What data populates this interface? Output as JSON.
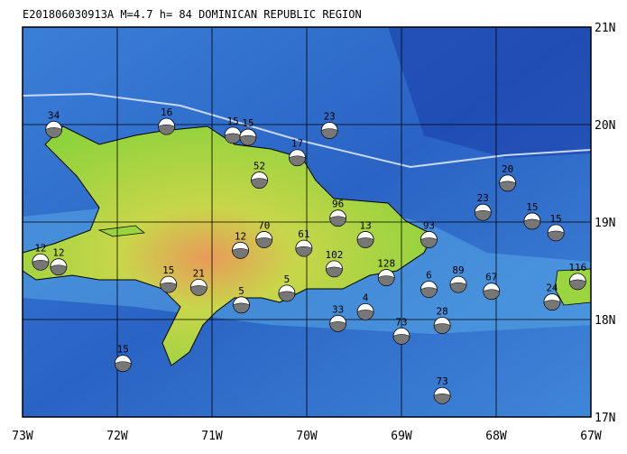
{
  "title": "E201806030913A  M=4.7  h= 84  DOMINICAN REPUBLIC REGION",
  "xlim": [
    -73,
    -67
  ],
  "ylim": [
    17,
    21
  ],
  "xticks": [
    {
      "value": -73,
      "label": "73W"
    },
    {
      "value": -72,
      "label": "72W"
    },
    {
      "value": -71,
      "label": "71W"
    },
    {
      "value": -70,
      "label": "70W"
    },
    {
      "value": -69,
      "label": "69W"
    },
    {
      "value": -68,
      "label": "68W"
    },
    {
      "value": -67,
      "label": "67W"
    }
  ],
  "yticks": [
    {
      "value": 17,
      "label": "17N"
    },
    {
      "value": 18,
      "label": "18N"
    },
    {
      "value": 19,
      "label": "19N"
    },
    {
      "value": 20,
      "label": "20N"
    },
    {
      "value": 21,
      "label": "21N"
    }
  ],
  "events": [
    {
      "lon": -72.67,
      "lat": 19.95,
      "depth": 34
    },
    {
      "lon": -71.48,
      "lat": 19.98,
      "depth": 16
    },
    {
      "lon": -70.78,
      "lat": 19.89,
      "depth": 15
    },
    {
      "lon": -70.62,
      "lat": 19.87,
      "depth": 15
    },
    {
      "lon": -69.76,
      "lat": 19.94,
      "depth": 23
    },
    {
      "lon": -70.1,
      "lat": 19.66,
      "depth": 17
    },
    {
      "lon": -70.5,
      "lat": 19.43,
      "depth": 52
    },
    {
      "lon": -69.67,
      "lat": 19.04,
      "depth": 96
    },
    {
      "lon": -69.38,
      "lat": 18.82,
      "depth": 13
    },
    {
      "lon": -68.71,
      "lat": 18.82,
      "depth": 93
    },
    {
      "lon": -67.88,
      "lat": 19.4,
      "depth": 20
    },
    {
      "lon": -68.14,
      "lat": 19.1,
      "depth": 23
    },
    {
      "lon": -67.62,
      "lat": 19.01,
      "depth": 15
    },
    {
      "lon": -67.37,
      "lat": 18.89,
      "depth": 15
    },
    {
      "lon": -67.14,
      "lat": 18.39,
      "depth": 116
    },
    {
      "lon": -67.41,
      "lat": 18.18,
      "depth": 24
    },
    {
      "lon": -68.05,
      "lat": 18.29,
      "depth": 67
    },
    {
      "lon": -68.4,
      "lat": 18.36,
      "depth": 89
    },
    {
      "lon": -70.45,
      "lat": 18.82,
      "depth": 70
    },
    {
      "lon": -70.7,
      "lat": 18.71,
      "depth": 12
    },
    {
      "lon": -70.03,
      "lat": 18.73,
      "depth": 61
    },
    {
      "lon": -69.71,
      "lat": 18.52,
      "depth": 102
    },
    {
      "lon": -71.46,
      "lat": 18.36,
      "depth": 15
    },
    {
      "lon": -71.14,
      "lat": 18.33,
      "depth": 21
    },
    {
      "lon": -70.69,
      "lat": 18.15,
      "depth": 5
    },
    {
      "lon": -70.21,
      "lat": 18.27,
      "depth": 5
    },
    {
      "lon": -69.67,
      "lat": 17.96,
      "depth": 33
    },
    {
      "lon": -69.38,
      "lat": 18.08,
      "depth": 4
    },
    {
      "lon": -69.0,
      "lat": 17.83,
      "depth": 73
    },
    {
      "lon": -69.16,
      "lat": 18.43,
      "depth": 128
    },
    {
      "lon": -71.94,
      "lat": 17.55,
      "depth": 15
    },
    {
      "lon": -68.57,
      "lat": 17.22,
      "depth": 73
    },
    {
      "lon": -72.81,
      "lat": 18.59,
      "depth": 12
    },
    {
      "lon": -72.62,
      "lat": 18.54,
      "depth": 12
    },
    {
      "lon": -68.57,
      "lat": 17.94,
      "depth": 28
    },
    {
      "lon": -68.71,
      "lat": 18.31,
      "depth": 6
    }
  ]
}
